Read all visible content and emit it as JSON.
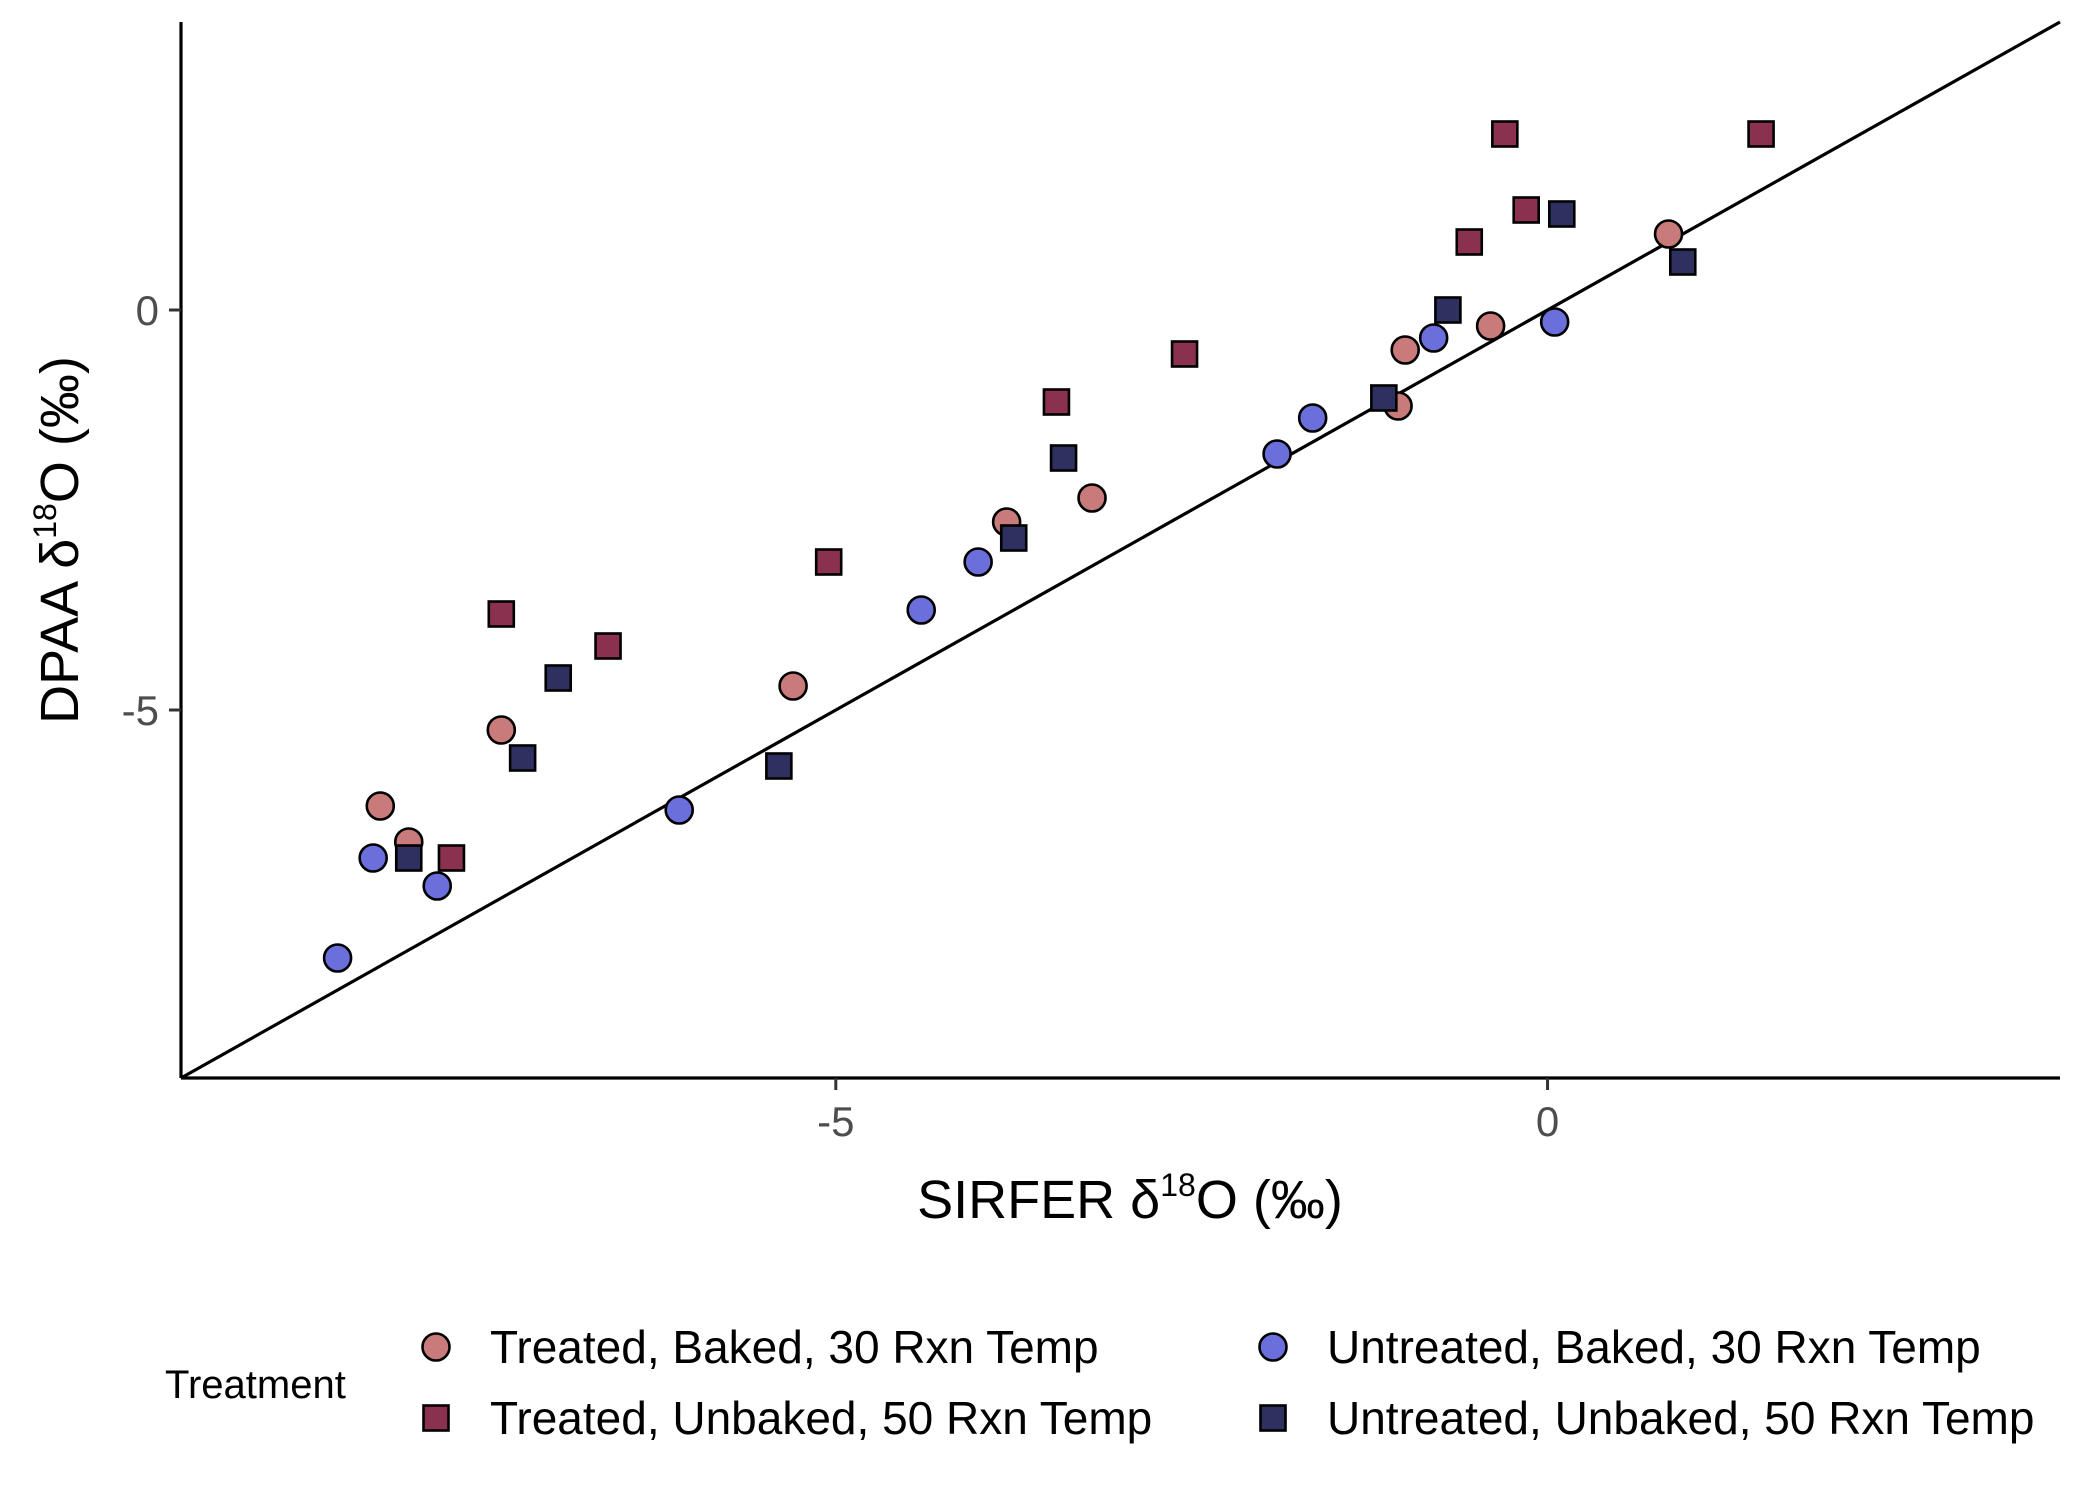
{
  "chart_data": {
    "type": "scatter",
    "xlabel": {
      "prefix": "SIRFER δ",
      "sup": "18",
      "suffix": "O (‰)"
    },
    "ylabel": {
      "prefix": "DPAA δ",
      "sup": "18",
      "suffix": "O (‰)"
    },
    "xlim": [
      -9.6,
      3.6
    ],
    "ylim": [
      -9.6,
      3.6
    ],
    "x_ticks": [
      {
        "value": -5,
        "label": "-5"
      },
      {
        "value": 0,
        "label": "0"
      }
    ],
    "y_ticks": [
      {
        "value": 0,
        "label": "0"
      },
      {
        "value": -5,
        "label": "-5"
      }
    ],
    "grid": false,
    "reference_line": {
      "type": "identity",
      "slope": 1,
      "intercept": 0
    },
    "legend": {
      "position": "bottom",
      "title": "Treatment"
    },
    "series": [
      {
        "name": "Treated, Baked, 30 Rxn Temp",
        "marker": "circle",
        "color": "#c97b7b",
        "points": [
          [
            -8.2,
            -6.2
          ],
          [
            -8.0,
            -6.65
          ],
          [
            -7.35,
            -5.25
          ],
          [
            -5.3,
            -4.7
          ],
          [
            -3.8,
            -2.65
          ],
          [
            -3.2,
            -2.35
          ],
          [
            -1.0,
            -0.5
          ],
          [
            -1.05,
            -1.2
          ],
          [
            -0.4,
            -0.2
          ],
          [
            0.85,
            0.95
          ]
        ]
      },
      {
        "name": "Untreated, Baked, 30 Rxn Temp",
        "marker": "circle",
        "color": "#6a6fdc",
        "points": [
          [
            -8.5,
            -8.1
          ],
          [
            -8.25,
            -6.85
          ],
          [
            -7.8,
            -7.2
          ],
          [
            -6.1,
            -6.25
          ],
          [
            -4.4,
            -3.75
          ],
          [
            -4.0,
            -3.15
          ],
          [
            -1.9,
            -1.8
          ],
          [
            -1.65,
            -1.35
          ],
          [
            -0.8,
            -0.35
          ],
          [
            0.05,
            -0.15
          ]
        ]
      },
      {
        "name": "Treated, Unbaked, 50 Rxn Temp",
        "marker": "square",
        "color": "#8b3150",
        "points": [
          [
            -7.35,
            -3.8
          ],
          [
            -6.6,
            -4.2
          ],
          [
            -7.7,
            -6.85
          ],
          [
            -5.05,
            -3.15
          ],
          [
            -3.45,
            -1.15
          ],
          [
            -2.55,
            -0.55
          ],
          [
            -0.55,
            0.85
          ],
          [
            -0.3,
            2.2
          ],
          [
            -0.15,
            1.25
          ],
          [
            1.5,
            2.2
          ]
        ]
      },
      {
        "name": "Untreated, Unbaked, 50 Rxn Temp",
        "marker": "square",
        "color": "#2e3160",
        "points": [
          [
            -8.0,
            -6.85
          ],
          [
            -7.2,
            -5.6
          ],
          [
            -6.95,
            -4.6
          ],
          [
            -5.4,
            -5.7
          ],
          [
            -3.75,
            -2.85
          ],
          [
            -3.4,
            -1.85
          ],
          [
            -1.15,
            -1.1
          ],
          [
            -0.7,
            0.0
          ],
          [
            0.1,
            1.2
          ],
          [
            0.95,
            0.6
          ]
        ]
      }
    ]
  }
}
